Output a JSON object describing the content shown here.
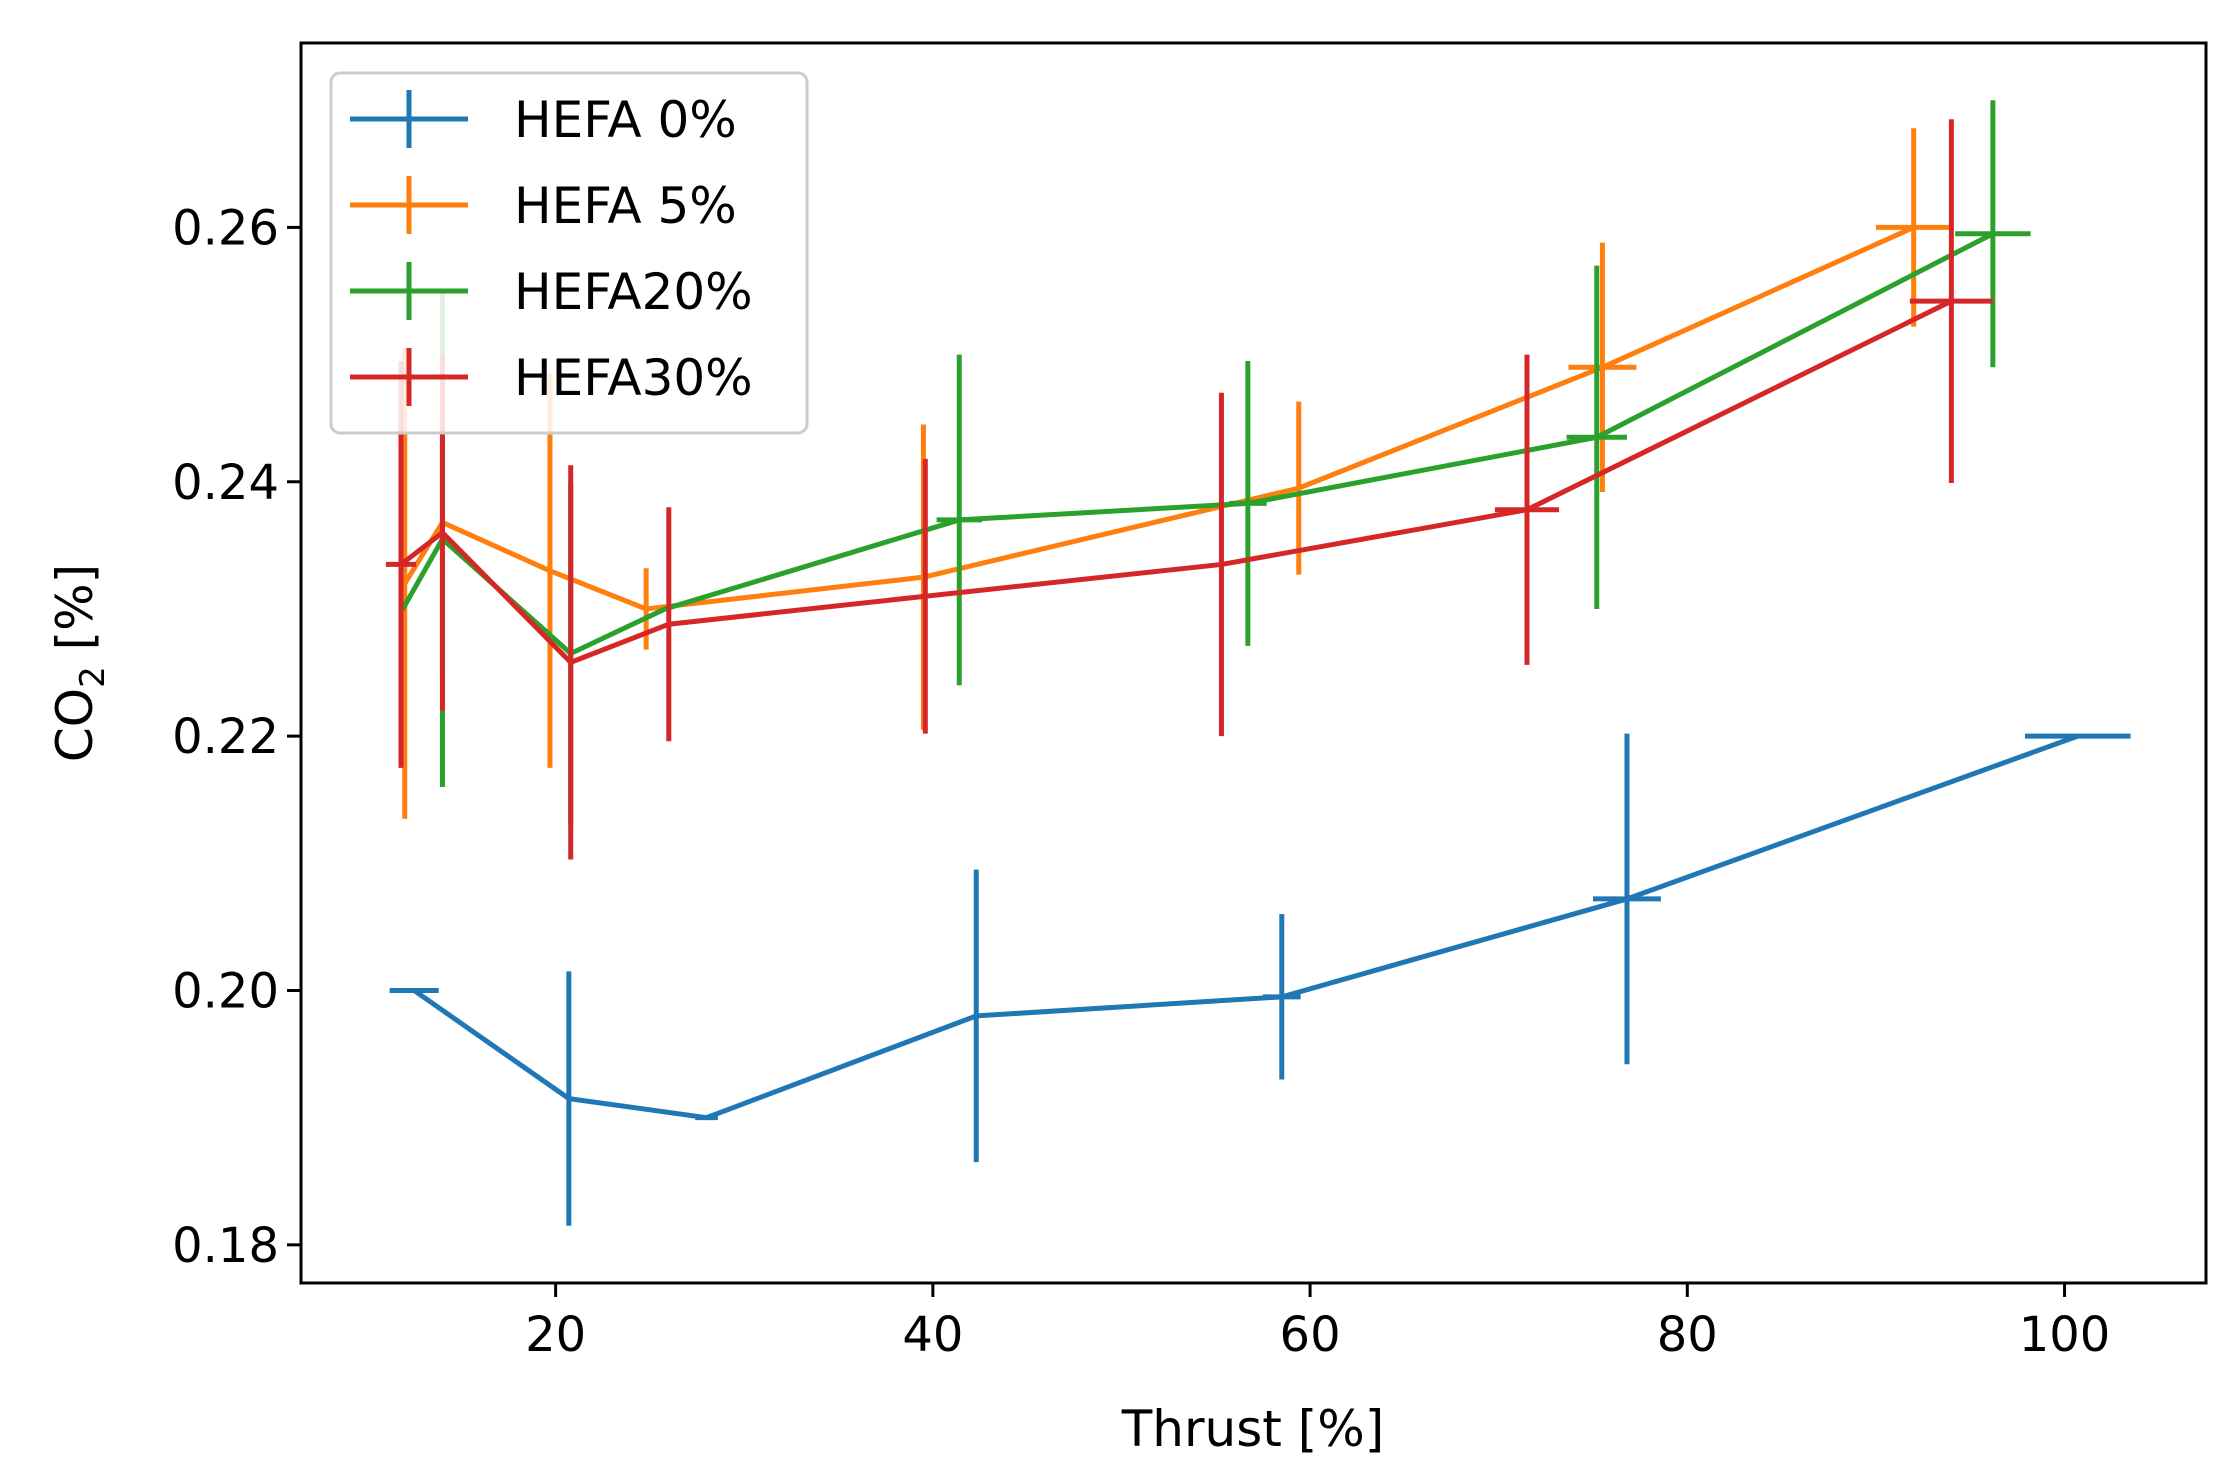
{
  "chart_data": {
    "type": "line",
    "title": "",
    "xlabel": "Thrust [%]",
    "ylabel_main": "CO",
    "ylabel_sub": "2",
    "ylabel_tail": " [%]",
    "xlim": [
      6.5,
      107.5
    ],
    "ylim": [
      0.177,
      0.2745
    ],
    "xticks": [
      20,
      40,
      60,
      80,
      100
    ],
    "xtick_labels": [
      "20",
      "40",
      "60",
      "80",
      "100"
    ],
    "yticks": [
      0.18,
      0.2,
      0.22,
      0.24,
      0.26
    ],
    "ytick_labels": [
      "0.18",
      "0.20",
      "0.22",
      "0.24",
      "0.26"
    ],
    "grid": false,
    "legend_position": "top-left",
    "series": [
      {
        "name": "HEFA 0%",
        "color": "#1f77b4",
        "points": [
          {
            "x": 12.5,
            "y": 0.2,
            "xerr": 1.3,
            "yerr": 0
          },
          {
            "x": 20.7,
            "y": 0.1915,
            "xerr": 0,
            "yerr": 0.01
          },
          {
            "x": 28.0,
            "y": 0.19,
            "xerr": 0.6,
            "yerr": 0
          },
          {
            "x": 42.3,
            "y": 0.198,
            "xerr": 0,
            "yerr": 0.0115
          },
          {
            "x": 58.5,
            "y": 0.1995,
            "xerr": 1.0,
            "yerr": 0.0065
          },
          {
            "x": 76.8,
            "y": 0.2072,
            "xerr": 1.8,
            "yerr": 0.013
          },
          {
            "x": 100.7,
            "y": 0.22,
            "xerr": 2.8,
            "yerr": 0
          }
        ]
      },
      {
        "name": "HEFA 5%",
        "color": "#ff7f0e",
        "points": [
          {
            "x": 12.0,
            "y": 0.232,
            "xerr": 0,
            "yerr": 0.0185
          },
          {
            "x": 14.0,
            "y": 0.2368,
            "xerr": 0,
            "yerr": 0.012
          },
          {
            "x": 19.7,
            "y": 0.233,
            "xerr": 0,
            "yerr": 0.0155
          },
          {
            "x": 24.8,
            "y": 0.23,
            "xerr": 0,
            "yerr": 0.0032
          },
          {
            "x": 39.5,
            "y": 0.2325,
            "xerr": 0,
            "yerr": 0.012
          },
          {
            "x": 59.4,
            "y": 0.2395,
            "xerr": 0,
            "yerr": 0.0068
          },
          {
            "x": 75.5,
            "y": 0.249,
            "xerr": 1.8,
            "yerr": 0.0098
          },
          {
            "x": 92.0,
            "y": 0.26,
            "xerr": 2.0,
            "yerr": 0.0078
          }
        ]
      },
      {
        "name": "HEFA20%",
        "color": "#2ca02c",
        "points": [
          {
            "x": 11.9,
            "y": 0.23,
            "xerr": 0,
            "yerr": 0
          },
          {
            "x": 14.0,
            "y": 0.2355,
            "xerr": 0,
            "yerr": 0.0195
          },
          {
            "x": 20.8,
            "y": 0.2265,
            "xerr": 0,
            "yerr": 0.0135
          },
          {
            "x": 25.8,
            "y": 0.23,
            "xerr": 0,
            "yerr": 0
          },
          {
            "x": 41.4,
            "y": 0.237,
            "xerr": 1.2,
            "yerr": 0.013
          },
          {
            "x": 56.7,
            "y": 0.2383,
            "xerr": 1.0,
            "yerr": 0.0112
          },
          {
            "x": 75.2,
            "y": 0.2435,
            "xerr": 1.6,
            "yerr": 0.0135
          },
          {
            "x": 96.2,
            "y": 0.2595,
            "xerr": 2.0,
            "yerr": 0.0105
          }
        ]
      },
      {
        "name": "HEFA30%",
        "color": "#d62728",
        "points": [
          {
            "x": 11.8,
            "y": 0.2335,
            "xerr": 0.8,
            "yerr": 0.016
          },
          {
            "x": 14.0,
            "y": 0.236,
            "xerr": 0,
            "yerr": 0.014
          },
          {
            "x": 20.8,
            "y": 0.2258,
            "xerr": 0,
            "yerr": 0.0155
          },
          {
            "x": 26.0,
            "y": 0.2288,
            "xerr": 0,
            "yerr": 0.0092
          },
          {
            "x": 39.6,
            "y": 0.231,
            "xerr": 0,
            "yerr": 0.0108
          },
          {
            "x": 55.3,
            "y": 0.2335,
            "xerr": 0,
            "yerr": 0.0135
          },
          {
            "x": 71.5,
            "y": 0.2378,
            "xerr": 1.7,
            "yerr": 0.0122
          },
          {
            "x": 94.0,
            "y": 0.2542,
            "xerr": 2.2,
            "yerr": 0.0143
          }
        ]
      }
    ]
  }
}
